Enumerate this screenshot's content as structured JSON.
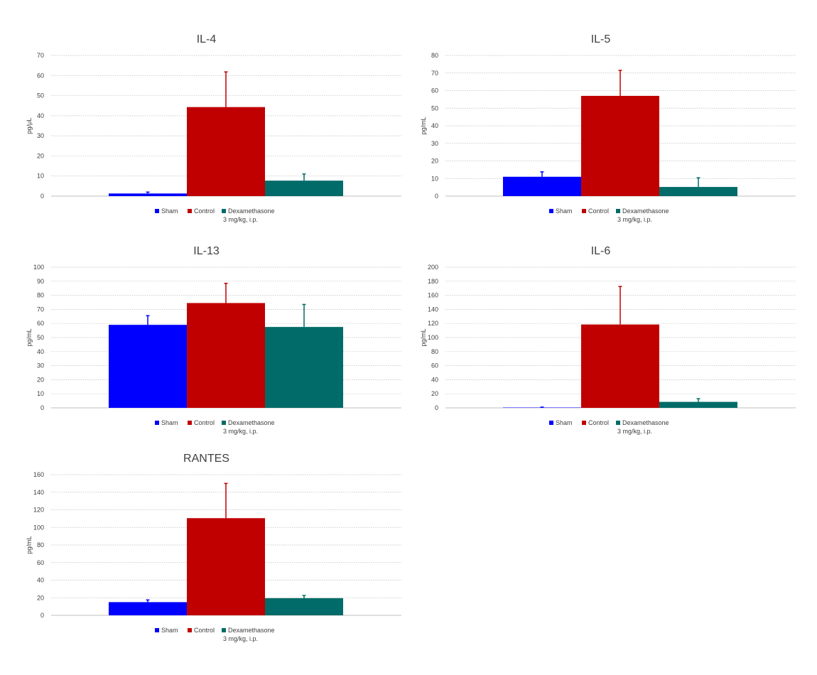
{
  "chart_data": [
    {
      "type": "bar",
      "title": "IL-4",
      "ylabel": "pg/μL",
      "xlabel": "",
      "ylim": [
        0,
        70
      ],
      "yticks": [
        0,
        10,
        20,
        30,
        40,
        50,
        60,
        70
      ],
      "grid": true,
      "legend_position": "bottom",
      "series": [
        {
          "name": "Sham",
          "values": [
            1.3
          ],
          "error": [
            0.7
          ]
        },
        {
          "name": "Control",
          "values": [
            44.3
          ],
          "error": [
            17.5
          ]
        },
        {
          "name": "Dexamethasone\n3 mg/kg, i.p.",
          "values": [
            7.7
          ],
          "error": [
            3.3
          ]
        }
      ]
    },
    {
      "type": "bar",
      "title": "IL-5",
      "ylabel": "pg/mL",
      "xlabel": "",
      "ylim": [
        0,
        80
      ],
      "yticks": [
        0,
        10,
        20,
        30,
        40,
        50,
        60,
        70,
        80
      ],
      "grid": true,
      "legend_position": "bottom",
      "series": [
        {
          "name": "Sham",
          "values": [
            11
          ],
          "error": [
            2.8
          ]
        },
        {
          "name": "Control",
          "values": [
            57
          ],
          "error": [
            14.5
          ]
        },
        {
          "name": "Dexamethasone\n3 mg/kg, i.p.",
          "values": [
            5.2
          ],
          "error": [
            5.2
          ]
        }
      ]
    },
    {
      "type": "bar",
      "title": "IL-13",
      "ylabel": "pg/mL",
      "xlabel": "",
      "ylim": [
        0,
        100
      ],
      "yticks": [
        0,
        10,
        20,
        30,
        40,
        50,
        60,
        70,
        80,
        90,
        100
      ],
      "grid": true,
      "legend_position": "bottom",
      "series": [
        {
          "name": "Sham",
          "values": [
            59
          ],
          "error": [
            6.5
          ]
        },
        {
          "name": "Control",
          "values": [
            74.5
          ],
          "error": [
            14
          ]
        },
        {
          "name": "Dexamethasone\n3 mg/kg, i.p.",
          "values": [
            57.5
          ],
          "error": [
            16
          ]
        }
      ]
    },
    {
      "type": "bar",
      "title": "IL-6",
      "ylabel": "pg/mL",
      "xlabel": "",
      "ylim": [
        0,
        200
      ],
      "yticks": [
        0,
        20,
        40,
        60,
        80,
        100,
        120,
        140,
        160,
        180,
        200
      ],
      "grid": true,
      "legend_position": "bottom",
      "series": [
        {
          "name": "Sham",
          "values": [
            0.5
          ],
          "error": [
            0.5
          ]
        },
        {
          "name": "Control",
          "values": [
            118.5
          ],
          "error": [
            54
          ]
        },
        {
          "name": "Dexamethasone\n3 mg/kg, i.p.",
          "values": [
            8.5
          ],
          "error": [
            4.5
          ]
        }
      ]
    },
    {
      "type": "bar",
      "title": "RANTES",
      "ylabel": "pg/mL",
      "xlabel": "",
      "ylim": [
        0,
        160
      ],
      "yticks": [
        0,
        20,
        40,
        60,
        80,
        100,
        120,
        140,
        160
      ],
      "grid": true,
      "legend_position": "bottom",
      "series": [
        {
          "name": "Sham",
          "values": [
            15
          ],
          "error": [
            2.5
          ]
        },
        {
          "name": "Control",
          "values": [
            110.5
          ],
          "error": [
            39.5
          ]
        },
        {
          "name": "Dexamethasone\n3 mg/kg, i.p.",
          "values": [
            19.5
          ],
          "error": [
            3
          ]
        }
      ]
    }
  ],
  "colors": {
    "Sham": "#0000ff",
    "Control": "#c00000",
    "Dexamethasone": "#006b68"
  }
}
